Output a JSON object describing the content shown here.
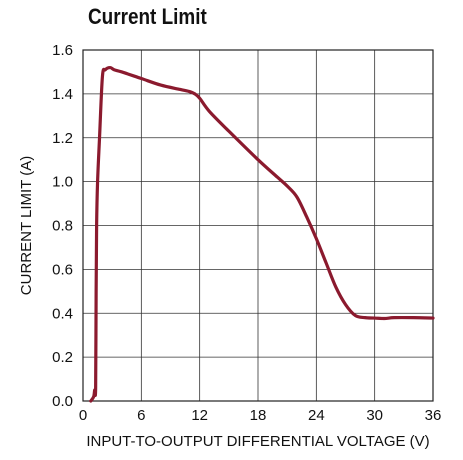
{
  "chart_data": {
    "type": "line",
    "title": "Current Limit",
    "xlabel": "INPUT-TO-OUTPUT DIFFERENTIAL VOLTAGE (V)",
    "ylabel": "CURRENT LIMIT (A)",
    "xlim": [
      0,
      36
    ],
    "ylim": [
      0,
      1.6
    ],
    "xticks": [
      0,
      6,
      12,
      18,
      24,
      30,
      36
    ],
    "xtick_labels": [
      "0",
      "6",
      "12",
      "18",
      "24",
      "30",
      "36"
    ],
    "yticks": [
      0,
      0.2,
      0.4,
      0.6,
      0.8,
      1.0,
      1.2,
      1.4,
      1.6
    ],
    "ytick_labels": [
      "0.0",
      "0.2",
      "0.4",
      "0.6",
      "0.8",
      "1.0",
      "1.2",
      "1.4",
      "1.6"
    ],
    "grid": true,
    "line_color": "#8b1a2e",
    "series": [
      {
        "x": [
          0.8,
          1.1,
          1.2,
          1.3,
          1.35,
          1.4,
          1.5,
          1.7,
          2.0,
          2.3,
          2.8,
          3.2,
          4,
          6,
          8,
          10,
          11,
          11.5,
          12,
          13,
          15,
          18,
          20,
          21,
          22,
          23,
          24,
          25,
          26,
          27,
          28,
          29,
          30,
          31,
          32,
          34,
          36
        ],
        "values": [
          0.0,
          0.02,
          0.05,
          0.06,
          0.5,
          0.8,
          1.0,
          1.2,
          1.48,
          1.51,
          1.52,
          1.51,
          1.5,
          1.47,
          1.44,
          1.42,
          1.41,
          1.4,
          1.38,
          1.32,
          1.23,
          1.1,
          1.02,
          0.98,
          0.93,
          0.84,
          0.74,
          0.63,
          0.52,
          0.44,
          0.39,
          0.38,
          0.378,
          0.376,
          0.38,
          0.38,
          0.378
        ]
      }
    ]
  }
}
